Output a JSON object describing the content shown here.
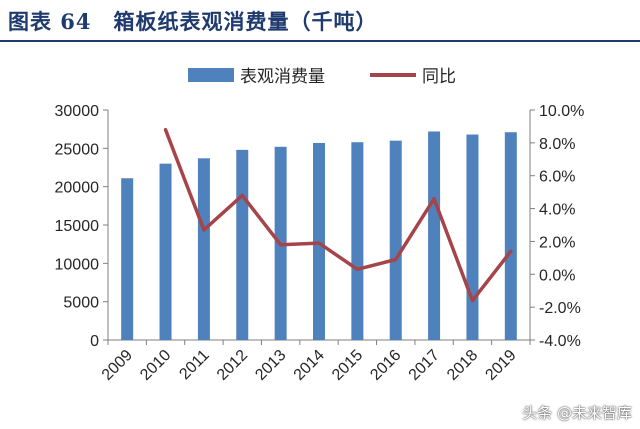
{
  "header": {
    "title": "图表 64　箱板纸表观消费量（千吨）"
  },
  "watermark": "头条 @未来智库",
  "chart_data": {
    "type": "bar",
    "categories": [
      "2009",
      "2010",
      "2011",
      "2012",
      "2013",
      "2014",
      "2015",
      "2016",
      "2017",
      "2018",
      "2019"
    ],
    "series": [
      {
        "name": "表观消费量",
        "type": "bar",
        "axis": "left",
        "values": [
          21100,
          23000,
          23700,
          24800,
          25200,
          25700,
          25800,
          26000,
          27200,
          26800,
          27100
        ]
      },
      {
        "name": "同比",
        "type": "line",
        "axis": "right",
        "values": [
          null,
          8.8,
          2.7,
          4.8,
          1.8,
          1.9,
          0.3,
          0.9,
          4.6,
          -1.6,
          1.4
        ]
      }
    ],
    "y_left": {
      "min": 0,
      "max": 30000,
      "ticks": [
        0,
        5000,
        10000,
        15000,
        20000,
        25000,
        30000
      ]
    },
    "y_right": {
      "min": -4,
      "max": 10,
      "ticks": [
        -4,
        -2,
        0,
        2,
        4,
        6,
        8,
        10
      ],
      "tick_labels": [
        "-4.0%",
        "-2.0%",
        "0.0%",
        "2.0%",
        "4.0%",
        "6.0%",
        "8.0%",
        "10.0%"
      ]
    },
    "legend": {
      "placement": "top"
    },
    "colors": {
      "bar": "#4f81bd",
      "line": "#a5454a",
      "axis": "#7f7f7f",
      "text": "#262626"
    },
    "grid": false
  }
}
